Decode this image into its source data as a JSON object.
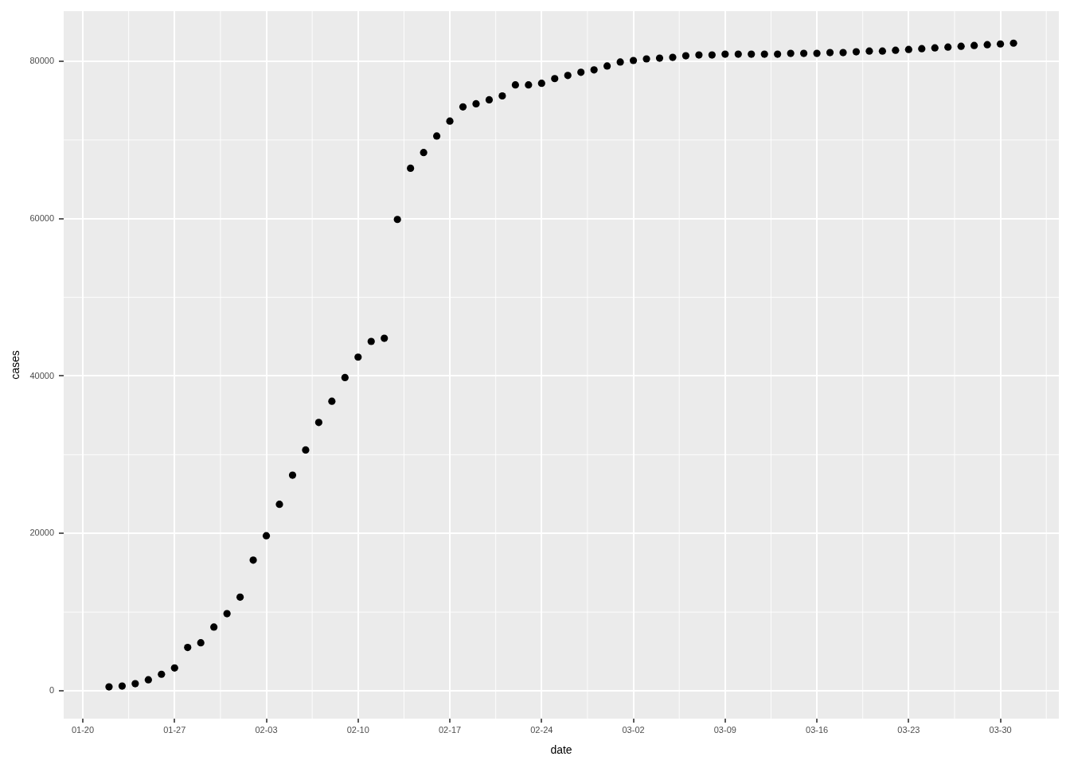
{
  "chart_data": {
    "type": "scatter",
    "xlabel": "date",
    "ylabel": "cases",
    "x": [
      "--01-22",
      "--01-23",
      "--01-24",
      "--01-25",
      "--01-26",
      "--01-27",
      "--01-28",
      "--01-29",
      "--01-30",
      "--01-31",
      "--02-01",
      "--02-02",
      "--02-03",
      "--02-04",
      "--02-05",
      "--02-06",
      "--02-07",
      "--02-08",
      "--02-09",
      "--02-10",
      "--02-11",
      "--02-12",
      "--02-13",
      "--02-14",
      "--02-15",
      "--02-16",
      "--02-17",
      "--02-18",
      "--02-19",
      "--02-20",
      "--02-21",
      "--02-22",
      "--02-23",
      "--02-24",
      "--02-25",
      "--02-26",
      "--02-27",
      "--02-28",
      "--02-29",
      "--03-01",
      "--03-02",
      "--03-03",
      "--03-04",
      "--03-05",
      "--03-06",
      "--03-07",
      "--03-08",
      "--03-09",
      "--03-10",
      "--03-11",
      "--03-12",
      "--03-13",
      "--03-14",
      "--03-15",
      "--03-16",
      "--03-17",
      "--03-18",
      "--03-19",
      "--03-20",
      "--03-21",
      "--03-22",
      "--03-23",
      "--03-24",
      "--03-25",
      "--03-26",
      "--03-27",
      "--03-28",
      "--03-29",
      "--03-30",
      "--03-31"
    ],
    "series": [
      {
        "color": "#000000",
        "values": [
          500,
          600,
          900,
          1400,
          2100,
          2900,
          5500,
          6100,
          8100,
          9800,
          11900,
          16600,
          19700,
          23700,
          27400,
          30600,
          34100,
          36800,
          39800,
          42400,
          44400,
          44800,
          59900,
          66400,
          68400,
          70500,
          72400,
          74200,
          74600,
          75100,
          75600,
          77000,
          77000,
          77200,
          77800,
          78200,
          78600,
          78900,
          79400,
          79900,
          80100,
          80300,
          80400,
          80500,
          80700,
          80800,
          80800,
          80900,
          80900,
          80900,
          80900,
          80900,
          81000,
          81000,
          81000,
          81100,
          81100,
          81200,
          81300,
          81300,
          81400,
          81500,
          81600,
          81700,
          81800,
          81900,
          82000,
          82100,
          82200,
          82300
        ]
      }
    ],
    "xlim": [
      "--01-18T13:00",
      "--04-03T11:00"
    ],
    "xticks": [
      {
        "value": "--01-20",
        "label": "01-20"
      },
      {
        "value": "--01-27",
        "label": "01-27"
      },
      {
        "value": "--02-03",
        "label": "02-03"
      },
      {
        "value": "--02-10",
        "label": "02-10"
      },
      {
        "value": "--02-17",
        "label": "02-17"
      },
      {
        "value": "--02-24",
        "label": "02-24"
      },
      {
        "value": "--03-02",
        "label": "03-02"
      },
      {
        "value": "--03-09",
        "label": "03-09"
      },
      {
        "value": "--03-16",
        "label": "03-16"
      },
      {
        "value": "--03-23",
        "label": "03-23"
      },
      {
        "value": "--03-30",
        "label": "03-30"
      }
    ],
    "ylim": [
      -3540,
      86370
    ],
    "yticks": [
      0,
      20000,
      40000,
      60000,
      80000
    ],
    "grid": true,
    "marker": "circle"
  }
}
